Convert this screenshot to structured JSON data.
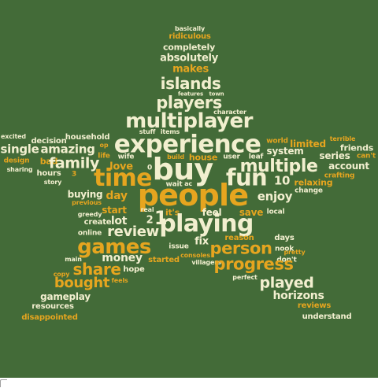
{
  "colors": {
    "background": "#436b38",
    "word_light": "#f2efcf",
    "word_gold": "#e6a51f"
  },
  "words": [
    {
      "text": "basically",
      "c": "c1"
    },
    {
      "text": "ridiculous",
      "c": "c2"
    },
    {
      "text": "completely",
      "c": "c1"
    },
    {
      "text": "absolutely",
      "c": "c1"
    },
    {
      "text": "makes",
      "c": "c2"
    },
    {
      "text": "features",
      "c": "c1"
    },
    {
      "text": "town",
      "c": "c1"
    },
    {
      "text": "islands",
      "c": "c1"
    },
    {
      "text": "players",
      "c": "c1"
    },
    {
      "text": "character",
      "c": "c1"
    },
    {
      "text": "stuff",
      "c": "c1"
    },
    {
      "text": "items",
      "c": "c1"
    },
    {
      "text": "multiplayer",
      "c": "c1"
    },
    {
      "text": "experience",
      "c": "c1"
    },
    {
      "text": "excited",
      "c": "c1"
    },
    {
      "text": "decision",
      "c": "c1"
    },
    {
      "text": "household",
      "c": "c1"
    },
    {
      "text": "op",
      "c": "c2"
    },
    {
      "text": "single",
      "c": "c1"
    },
    {
      "text": "amazing",
      "c": "c1"
    },
    {
      "text": "life",
      "c": "c2"
    },
    {
      "text": "design",
      "c": "c2"
    },
    {
      "text": "sharing",
      "c": "c1"
    },
    {
      "text": "bad",
      "c": "c2"
    },
    {
      "text": "family",
      "c": "c1"
    },
    {
      "text": "wife",
      "c": "c1"
    },
    {
      "text": "love",
      "c": "c2"
    },
    {
      "text": "0",
      "c": "c1"
    },
    {
      "text": "hours",
      "c": "c1"
    },
    {
      "text": "3",
      "c": "c2"
    },
    {
      "text": "story",
      "c": "c1"
    },
    {
      "text": "time",
      "c": "c2"
    },
    {
      "text": "buy",
      "c": "c1"
    },
    {
      "text": "build",
      "c": "c2"
    },
    {
      "text": "house",
      "c": "c2"
    },
    {
      "text": "user",
      "c": "c1"
    },
    {
      "text": "leaf",
      "c": "c1"
    },
    {
      "text": "world",
      "c": "c2"
    },
    {
      "text": "limited",
      "c": "c2"
    },
    {
      "text": "terrible",
      "c": "c2"
    },
    {
      "text": "friends",
      "c": "c1"
    },
    {
      "text": "system",
      "c": "c1"
    },
    {
      "text": "series",
      "c": "c1"
    },
    {
      "text": "can't",
      "c": "c2"
    },
    {
      "text": "multiple",
      "c": "c1"
    },
    {
      "text": "account",
      "c": "c1"
    },
    {
      "text": "crafting",
      "c": "c2"
    },
    {
      "text": "fun",
      "c": "c1"
    },
    {
      "text": "wait",
      "c": "c1"
    },
    {
      "text": "ac",
      "c": "c1"
    },
    {
      "text": "10",
      "c": "c1"
    },
    {
      "text": "relaxing",
      "c": "c2"
    },
    {
      "text": "change",
      "c": "c1"
    },
    {
      "text": "buying",
      "c": "c1"
    },
    {
      "text": "day",
      "c": "c2"
    },
    {
      "text": "previous",
      "c": "c2"
    },
    {
      "text": "people",
      "c": "c2"
    },
    {
      "text": "enjoy",
      "c": "c1"
    },
    {
      "text": "greedy",
      "c": "c1"
    },
    {
      "text": "start",
      "c": "c2"
    },
    {
      "text": "real",
      "c": "c1"
    },
    {
      "text": "it's",
      "c": "c2"
    },
    {
      "text": "feel",
      "c": "c1"
    },
    {
      "text": "save",
      "c": "c2"
    },
    {
      "text": "local",
      "c": "c1"
    },
    {
      "text": "create",
      "c": "c1"
    },
    {
      "text": "lot",
      "c": "c1"
    },
    {
      "text": "2",
      "c": "c1"
    },
    {
      "text": "1",
      "c": "c1"
    },
    {
      "text": "playing",
      "c": "c1"
    },
    {
      "text": "online",
      "c": "c1"
    },
    {
      "text": "review",
      "c": "c1"
    },
    {
      "text": "fix",
      "c": "c1"
    },
    {
      "text": "reason",
      "c": "c2"
    },
    {
      "text": "days",
      "c": "c1"
    },
    {
      "text": "games",
      "c": "c2"
    },
    {
      "text": "issue",
      "c": "c1"
    },
    {
      "text": "person",
      "c": "c2"
    },
    {
      "text": "nook",
      "c": "c1"
    },
    {
      "text": "pretty",
      "c": "c2"
    },
    {
      "text": "main",
      "c": "c1"
    },
    {
      "text": "money",
      "c": "c1"
    },
    {
      "text": "started",
      "c": "c2"
    },
    {
      "text": "consoles",
      "c": "c2"
    },
    {
      "text": "don't",
      "c": "c1"
    },
    {
      "text": "villagers",
      "c": "c1"
    },
    {
      "text": "share",
      "c": "c2"
    },
    {
      "text": "hope",
      "c": "c1"
    },
    {
      "text": "progress",
      "c": "c2"
    },
    {
      "text": "copy",
      "c": "c2"
    },
    {
      "text": "bought",
      "c": "c2"
    },
    {
      "text": "feels",
      "c": "c2"
    },
    {
      "text": "perfect",
      "c": "c1"
    },
    {
      "text": "played",
      "c": "c1"
    },
    {
      "text": "gameplay",
      "c": "c1"
    },
    {
      "text": "horizons",
      "c": "c1"
    },
    {
      "text": "resources",
      "c": "c1"
    },
    {
      "text": "reviews",
      "c": "c2"
    },
    {
      "text": "disappointed",
      "c": "c2"
    },
    {
      "text": "understand",
      "c": "c1"
    }
  ]
}
